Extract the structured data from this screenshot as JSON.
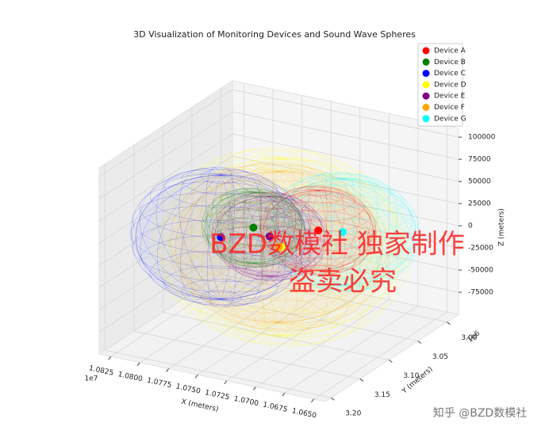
{
  "chart_data": {
    "type": "scatter3d",
    "title": "3D Visualization of Monitoring Devices and Sound Wave Spheres",
    "xlabel": "X (meters)",
    "ylabel": "Y (meters)",
    "zlabel": "Z (meters)",
    "x_offset_label": "1e7",
    "y_offset_label": "1e6",
    "xlim": [
      10835000,
      10640000
    ],
    "ylim": [
      2980000,
      3210000
    ],
    "zlim": [
      -100000,
      110000
    ],
    "xticks": [
      {
        "value": 10825000,
        "label": "1.0825"
      },
      {
        "value": 10800000,
        "label": "1.0800"
      },
      {
        "value": 10775000,
        "label": "1.0775"
      },
      {
        "value": 10750000,
        "label": "1.0750"
      },
      {
        "value": 10725000,
        "label": "1.0725"
      },
      {
        "value": 10700000,
        "label": "1.0700"
      },
      {
        "value": 10675000,
        "label": "1.0675"
      },
      {
        "value": 10650000,
        "label": "1.0650"
      }
    ],
    "yticks": [
      {
        "value": 3000000,
        "label": "3.00"
      },
      {
        "value": 3050000,
        "label": "3.05"
      },
      {
        "value": 3100000,
        "label": "3.10"
      },
      {
        "value": 3150000,
        "label": "3.15"
      },
      {
        "value": 3200000,
        "label": "3.20"
      }
    ],
    "zticks": [
      -75000,
      -50000,
      -25000,
      0,
      25000,
      50000,
      75000,
      100000
    ],
    "grid": true,
    "legend": "upper right",
    "series": [
      {
        "name": "Device A",
        "color": "#ff0000",
        "x": [
          10726000
        ],
        "y": [
          3050000
        ],
        "z": [
          1000
        ],
        "radius": [
          45000
        ]
      },
      {
        "name": "Device B",
        "color": "#008000",
        "x": [
          10757000
        ],
        "y": [
          3100000
        ],
        "z": [
          17000
        ],
        "radius": [
          40000
        ]
      },
      {
        "name": "Device C",
        "color": "#0000ff",
        "x": [
          10775000
        ],
        "y": [
          3120000
        ],
        "z": [
          10000
        ],
        "radius": [
          70000
        ]
      },
      {
        "name": "Device D",
        "color": "#ffff00",
        "x": [
          10723000
        ],
        "y": [
          3120000
        ],
        "z": [
          13000
        ],
        "radius": [
          100000
        ]
      },
      {
        "name": "Device E",
        "color": "#800080",
        "x": [
          10743000
        ],
        "y": [
          3100000
        ],
        "z": [
          11000
        ],
        "radius": [
          45000
        ]
      },
      {
        "name": "Device F",
        "color": "#ffa500",
        "x": [
          10745000
        ],
        "y": [
          3080000
        ],
        "z": [
          -10000
        ],
        "radius": [
          85000
        ]
      },
      {
        "name": "Device G",
        "color": "#00ffff",
        "x": [
          10705000
        ],
        "y": [
          3050000
        ],
        "z": [
          5000
        ],
        "radius": [
          60000
        ]
      }
    ]
  },
  "watermark": {
    "lines": [
      "BZD数模社 独家制作",
      "盗卖必究"
    ],
    "credit": "知乎 @BZD数模社"
  }
}
